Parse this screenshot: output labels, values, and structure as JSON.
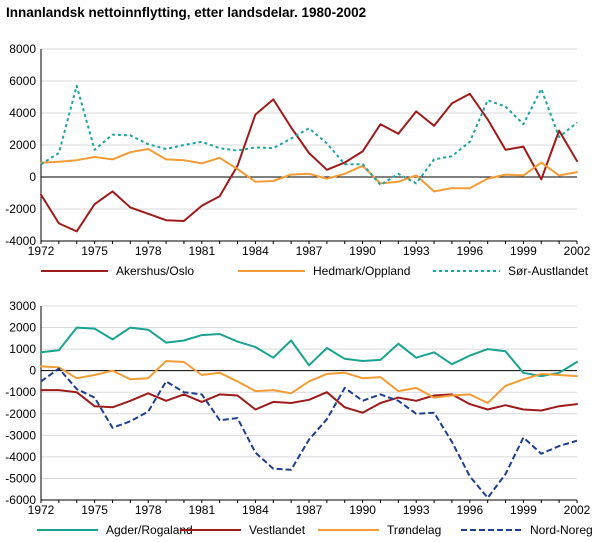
{
  "title": "Innanlandsk nettoinnflytting, etter landsdelar. 1980-2002",
  "chart_data": [
    {
      "type": "line",
      "title": "",
      "xlabel": "",
      "ylabel": "",
      "ylim": [
        -4000,
        8000
      ],
      "yticks": [
        -4000,
        -2000,
        0,
        2000,
        4000,
        6000,
        8000
      ],
      "ytick_labels": [
        "-4000",
        "-2000",
        "0",
        "2000",
        "4000",
        "6000",
        "8000"
      ],
      "xlim": [
        1972,
        2002
      ],
      "xticks": [
        1972,
        1975,
        1978,
        1981,
        1984,
        1987,
        1990,
        1993,
        1996,
        1999,
        2002
      ],
      "xtick_labels": [
        "1972",
        "1975",
        "1978",
        "1981",
        "1984",
        "1987",
        "1990",
        "1993",
        "1996",
        "1999",
        "2002"
      ],
      "grid": "horizontal",
      "legend_position": "bottom",
      "x": [
        1972,
        1973,
        1974,
        1975,
        1976,
        1977,
        1978,
        1979,
        1980,
        1981,
        1982,
        1983,
        1984,
        1985,
        1986,
        1987,
        1988,
        1989,
        1990,
        1991,
        1992,
        1993,
        1994,
        1995,
        1996,
        1997,
        1998,
        1999,
        2000,
        2001,
        2002
      ],
      "series": [
        {
          "name": "Akershus/Oslo",
          "color": "#9e1b1b",
          "style": "solid",
          "values": [
            -1100,
            -2900,
            -3400,
            -1700,
            -900,
            -1900,
            -2300,
            -2700,
            -2750,
            -1800,
            -1200,
            700,
            3900,
            4850,
            3100,
            1500,
            450,
            900,
            1600,
            3300,
            2700,
            4100,
            3200,
            4600,
            5200,
            3600,
            1700,
            1900,
            -150,
            2900,
            1000
          ]
        },
        {
          "name": "Hedmark/Oppland",
          "color": "#f39c36",
          "style": "solid",
          "values": [
            900,
            950,
            1050,
            1250,
            1100,
            1550,
            1750,
            1100,
            1050,
            850,
            1200,
            500,
            -300,
            -250,
            150,
            200,
            -100,
            200,
            700,
            -400,
            -300,
            100,
            -900,
            -700,
            -700,
            -100,
            150,
            100,
            900,
            100,
            300
          ]
        },
        {
          "name": "Sør-Austlandet",
          "color": "#1aa4a2",
          "style": "dotted",
          "values": [
            800,
            1500,
            5700,
            1700,
            2650,
            2600,
            2050,
            1750,
            2000,
            2200,
            1800,
            1650,
            1850,
            1800,
            2400,
            3050,
            2100,
            800,
            800,
            -500,
            200,
            -400,
            1100,
            1300,
            2200,
            4800,
            4400,
            3300,
            5500,
            2500,
            3400
          ]
        }
      ]
    },
    {
      "type": "line",
      "title": "",
      "xlabel": "",
      "ylabel": "",
      "ylim": [
        -6000,
        3000
      ],
      "yticks": [
        -6000,
        -5000,
        -4000,
        -3000,
        -2000,
        -1000,
        0,
        1000,
        2000,
        3000
      ],
      "ytick_labels": [
        "-6000",
        "-5000",
        "-4000",
        "-3000",
        "-2000",
        "-1000",
        "0",
        "1000",
        "2000",
        "3000"
      ],
      "xlim": [
        1972,
        2002
      ],
      "xticks": [
        1972,
        1975,
        1978,
        1981,
        1984,
        1987,
        1990,
        1993,
        1996,
        1999,
        2002
      ],
      "xtick_labels": [
        "1972",
        "1975",
        "1978",
        "1981",
        "1984",
        "1987",
        "1990",
        "1993",
        "1996",
        "1999",
        "2002"
      ],
      "grid": "horizontal",
      "legend_position": "bottom",
      "x": [
        1972,
        1973,
        1974,
        1975,
        1976,
        1977,
        1978,
        1979,
        1980,
        1981,
        1982,
        1983,
        1984,
        1985,
        1986,
        1987,
        1988,
        1989,
        1990,
        1991,
        1992,
        1993,
        1994,
        1995,
        1996,
        1997,
        1998,
        1999,
        2000,
        2001,
        2002
      ],
      "series": [
        {
          "name": "Agder/Rogaland",
          "color": "#1aa38f",
          "style": "solid",
          "values": [
            850,
            950,
            2000,
            1950,
            1450,
            2000,
            1900,
            1300,
            1400,
            1650,
            1700,
            1350,
            1100,
            600,
            1400,
            250,
            1050,
            550,
            450,
            500,
            1250,
            600,
            850,
            300,
            700,
            1000,
            900,
            -100,
            -250,
            -100,
            400
          ]
        },
        {
          "name": "Vestlandet",
          "color": "#9e1b1b",
          "style": "solid",
          "values": [
            -900,
            -900,
            -1000,
            -1650,
            -1700,
            -1400,
            -1050,
            -1400,
            -1100,
            -1450,
            -1100,
            -1150,
            -1800,
            -1450,
            -1500,
            -1350,
            -1000,
            -1700,
            -1950,
            -1500,
            -1250,
            -1400,
            -1150,
            -1100,
            -1550,
            -1800,
            -1600,
            -1800,
            -1850,
            -1650,
            -1550
          ]
        },
        {
          "name": "Trøndelag",
          "color": "#f39c36",
          "style": "solid",
          "values": [
            200,
            150,
            -350,
            -200,
            0,
            -400,
            -350,
            450,
            400,
            -200,
            -100,
            -500,
            -950,
            -900,
            -1050,
            -500,
            -150,
            -100,
            -350,
            -300,
            -950,
            -800,
            -1250,
            -1150,
            -1100,
            -1500,
            -700,
            -400,
            -150,
            -200,
            -250
          ]
        },
        {
          "name": "Nord-Noreg",
          "color": "#1f3e8f",
          "style": "dashed",
          "values": [
            -500,
            100,
            -850,
            -1250,
            -2650,
            -2350,
            -1900,
            -500,
            -1000,
            -1100,
            -2300,
            -2200,
            -3800,
            -4550,
            -4600,
            -3200,
            -2250,
            -800,
            -1400,
            -1100,
            -1400,
            -2000,
            -1950,
            -3300,
            -4900,
            -5900,
            -4800,
            -3100,
            -3850,
            -3500,
            -3250
          ]
        }
      ]
    }
  ]
}
